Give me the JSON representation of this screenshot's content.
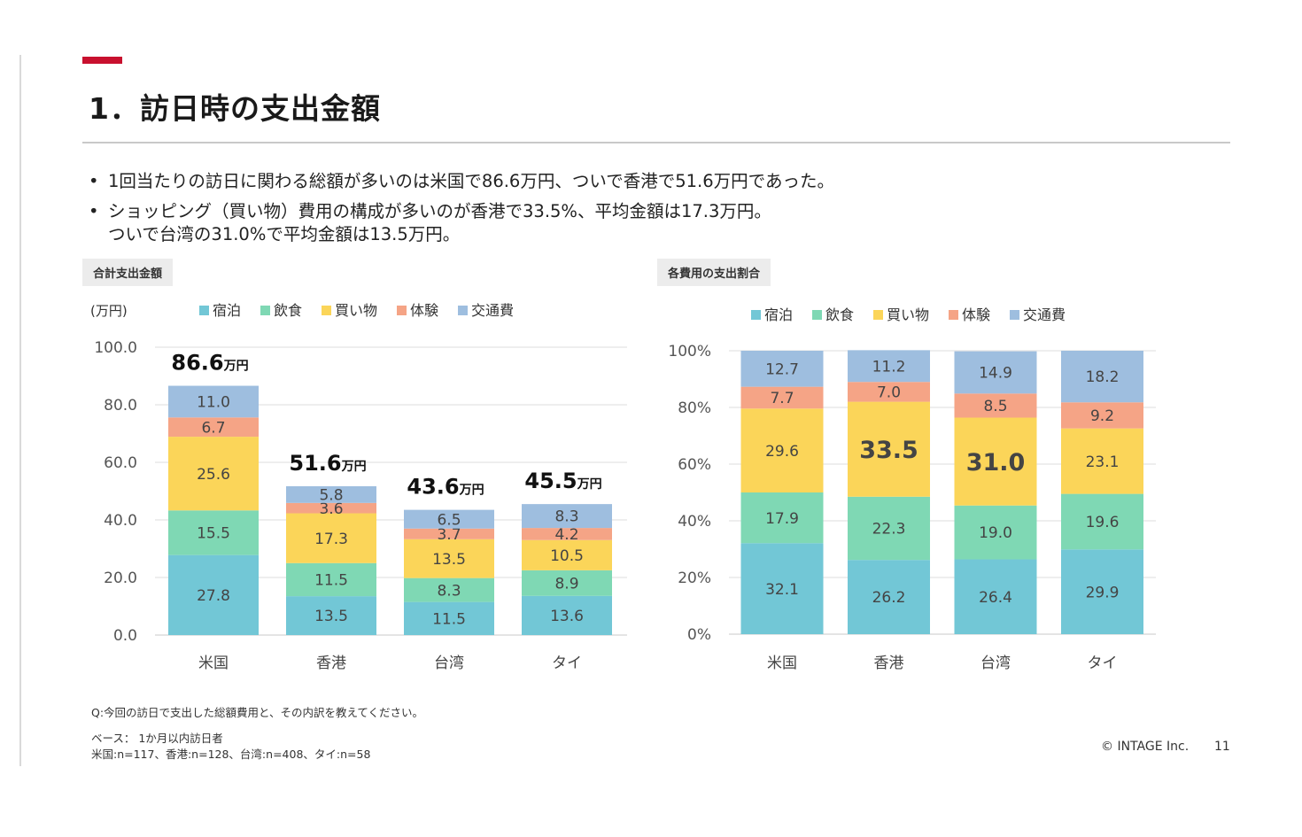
{
  "title": "1．訪日時の支出金額",
  "bullets": [
    {
      "lines": [
        "1回当たりの訪日に関わる総額が多いのは米国で86.6万円、ついで香港で51.6万円であった。"
      ]
    },
    {
      "lines": [
        "ショッピング（買い物）費用の構成が多いのが香港で33.5%、平均金額は17.3万円。",
        "ついで台湾の31.0%で平均金額は13.5万円。"
      ]
    }
  ],
  "colors": {
    "accent": "#c8102e",
    "lodging": "#72c7d6",
    "food": "#7fd8b4",
    "shopping": "#fbd559",
    "experience": "#f5a486",
    "transport": "#9ebedf"
  },
  "chart_data": [
    {
      "type": "bar",
      "stacked": true,
      "tag": "合計支出金額",
      "unit_label": "(万円)",
      "categories": [
        "米国",
        "香港",
        "台湾",
        "タイ"
      ],
      "ylim": [
        0,
        100
      ],
      "yticks": [
        "0.0",
        "20.0",
        "40.0",
        "60.0",
        "80.0",
        "100.0"
      ],
      "series": [
        {
          "name": "宿泊",
          "values": [
            27.8,
            13.5,
            11.5,
            13.6
          ]
        },
        {
          "name": "飲食",
          "values": [
            15.5,
            11.5,
            8.3,
            8.9
          ]
        },
        {
          "name": "買い物",
          "values": [
            25.6,
            17.3,
            13.5,
            10.5
          ]
        },
        {
          "name": "体験",
          "values": [
            6.7,
            3.6,
            3.7,
            4.2
          ]
        },
        {
          "name": "交通費",
          "values": [
            11.0,
            5.8,
            6.5,
            8.3
          ]
        }
      ],
      "totals": [
        "86.6",
        "51.6",
        "43.6",
        "45.5"
      ],
      "total_unit": "万円",
      "legend": "top",
      "grid": true
    },
    {
      "type": "bar",
      "stacked": true,
      "percent": true,
      "tag": "各費用の支出割合",
      "categories": [
        "米国",
        "香港",
        "台湾",
        "タイ"
      ],
      "ylim": [
        0,
        100
      ],
      "yticks": [
        "0%",
        "20%",
        "40%",
        "60%",
        "80%",
        "100%"
      ],
      "series": [
        {
          "name": "宿泊",
          "values": [
            32.1,
            26.2,
            26.4,
            29.9
          ]
        },
        {
          "name": "飲食",
          "values": [
            17.9,
            22.3,
            19.0,
            19.6
          ]
        },
        {
          "name": "買い物",
          "values": [
            29.6,
            33.5,
            31.0,
            23.1
          ]
        },
        {
          "name": "体験",
          "values": [
            7.7,
            7.0,
            8.5,
            9.2
          ]
        },
        {
          "name": "交通費",
          "values": [
            12.7,
            11.2,
            14.9,
            18.2
          ]
        }
      ],
      "highlight": [
        [
          2,
          1
        ],
        [
          2,
          2
        ]
      ],
      "legend": "top",
      "grid": true
    }
  ],
  "notes": {
    "question": "Q:今回の訪日で支出した総額費用と、その内訳を教えてください。",
    "base": "ベース：  1か月以内訪日者",
    "sample": "米国:n=117、香港:n=128、台湾:n=408、タイ:n=58"
  },
  "footer": {
    "company": "© INTAGE Inc.",
    "page": "11"
  }
}
